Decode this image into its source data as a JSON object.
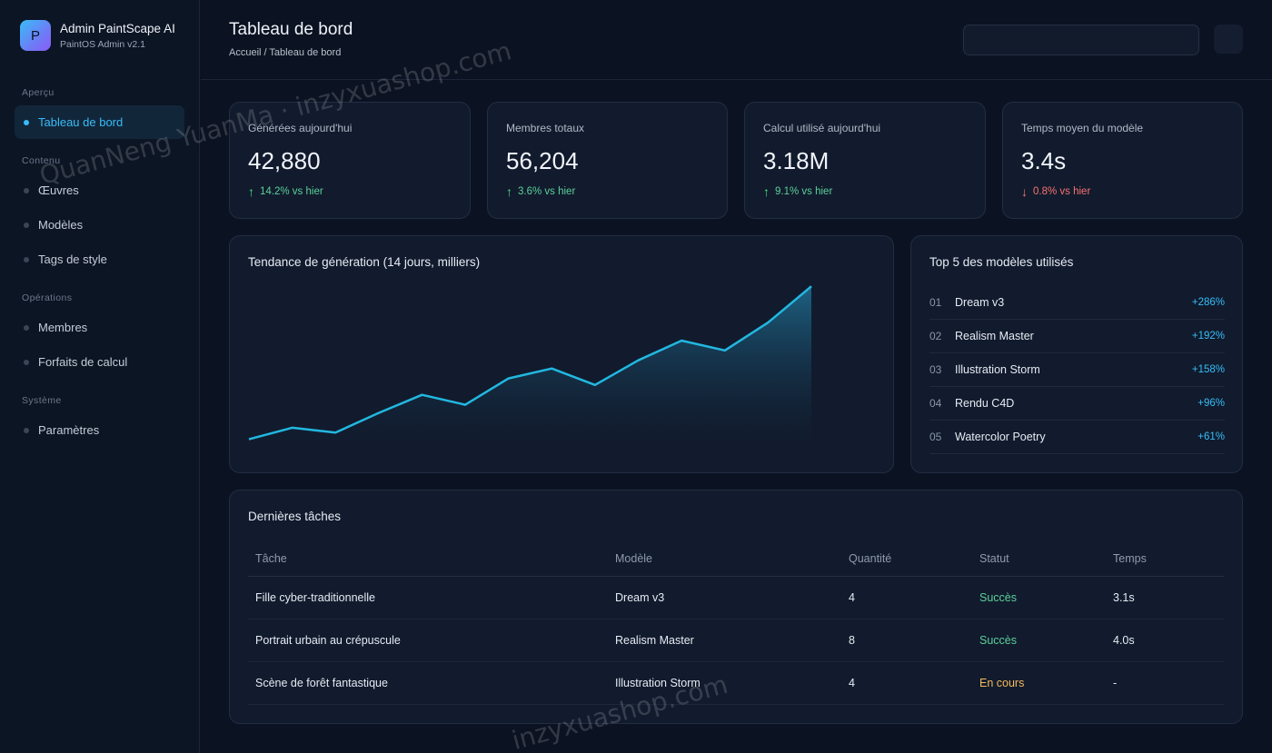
{
  "brand": {
    "logo_letter": "P",
    "title": "Admin PaintScape AI",
    "subtitle": "PaintOS Admin v2.1"
  },
  "sidebar": {
    "sections": [
      {
        "label": "Aperçu"
      },
      {
        "label": "Contenu"
      },
      {
        "label": "Opérations"
      },
      {
        "label": "Système"
      }
    ],
    "items": [
      {
        "label": "Tableau de bord",
        "active": true
      },
      {
        "label": "Œuvres"
      },
      {
        "label": "Modèles"
      },
      {
        "label": "Tags de style"
      },
      {
        "label": "Membres"
      },
      {
        "label": "Forfaits de calcul"
      },
      {
        "label": "Paramètres"
      }
    ]
  },
  "header": {
    "title": "Tableau de bord",
    "breadcrumb": "Accueil / Tableau de bord",
    "search_placeholder": ""
  },
  "stats": [
    {
      "label": "Générées aujourd'hui",
      "value": "42,880",
      "delta": "14.2% vs hier",
      "direction": "up",
      "arrow": "↑"
    },
    {
      "label": "Membres totaux",
      "value": "56,204",
      "delta": "3.6% vs hier",
      "direction": "up",
      "arrow": "↑"
    },
    {
      "label": "Calcul utilisé aujourd'hui",
      "value": "3.18M",
      "delta": "9.1% vs hier",
      "direction": "up",
      "arrow": "↑"
    },
    {
      "label": "Temps moyen du modèle",
      "value": "3.4s",
      "delta": "0.8% vs hier",
      "direction": "down",
      "arrow": "↓"
    }
  ],
  "trend": {
    "title": "Tendance de génération (14 jours, milliers)"
  },
  "chart_data": {
    "type": "area",
    "title": "Tendance de génération (14 jours, milliers)",
    "x": [
      1,
      2,
      3,
      4,
      5,
      6,
      7,
      8,
      9,
      10,
      11,
      12,
      13,
      14
    ],
    "series": [
      {
        "values": [
          3,
          10,
          7,
          19,
          30,
          24,
          40,
          46,
          36,
          51,
          63,
          57,
          74,
          96
        ]
      }
    ],
    "ylim": [
      0,
      100
    ],
    "grid": false,
    "line_color": "#22b8e0"
  },
  "top_models": {
    "title": "Top 5 des modèles utilisés",
    "items": [
      {
        "rank": "01",
        "name": "Dream v3",
        "growth": "+286%"
      },
      {
        "rank": "02",
        "name": "Realism Master",
        "growth": "+192%"
      },
      {
        "rank": "03",
        "name": "Illustration Storm",
        "growth": "+158%"
      },
      {
        "rank": "04",
        "name": "Rendu C4D",
        "growth": "+96%"
      },
      {
        "rank": "05",
        "name": "Watercolor Poetry",
        "growth": "+61%"
      }
    ]
  },
  "tasks": {
    "title": "Dernières tâches",
    "columns": [
      "Tâche",
      "Modèle",
      "Quantité",
      "Statut",
      "Temps"
    ],
    "rows": [
      {
        "task": "Fille cyber-traditionnelle",
        "model": "Dream v3",
        "qty": "4",
        "status": "Succès",
        "status_type": "ok",
        "time": "3.1s"
      },
      {
        "task": "Portrait urbain au crépuscule",
        "model": "Realism Master",
        "qty": "8",
        "status": "Succès",
        "status_type": "ok",
        "time": "4.0s"
      },
      {
        "task": "Scène de forêt fantastique",
        "model": "Illustration Storm",
        "qty": "4",
        "status": "En cours",
        "status_type": "run",
        "time": "-"
      }
    ]
  },
  "watermarks": [
    "QuanNeng YuanMa · inzyxuashop.com",
    "inzyxuashop.com"
  ]
}
